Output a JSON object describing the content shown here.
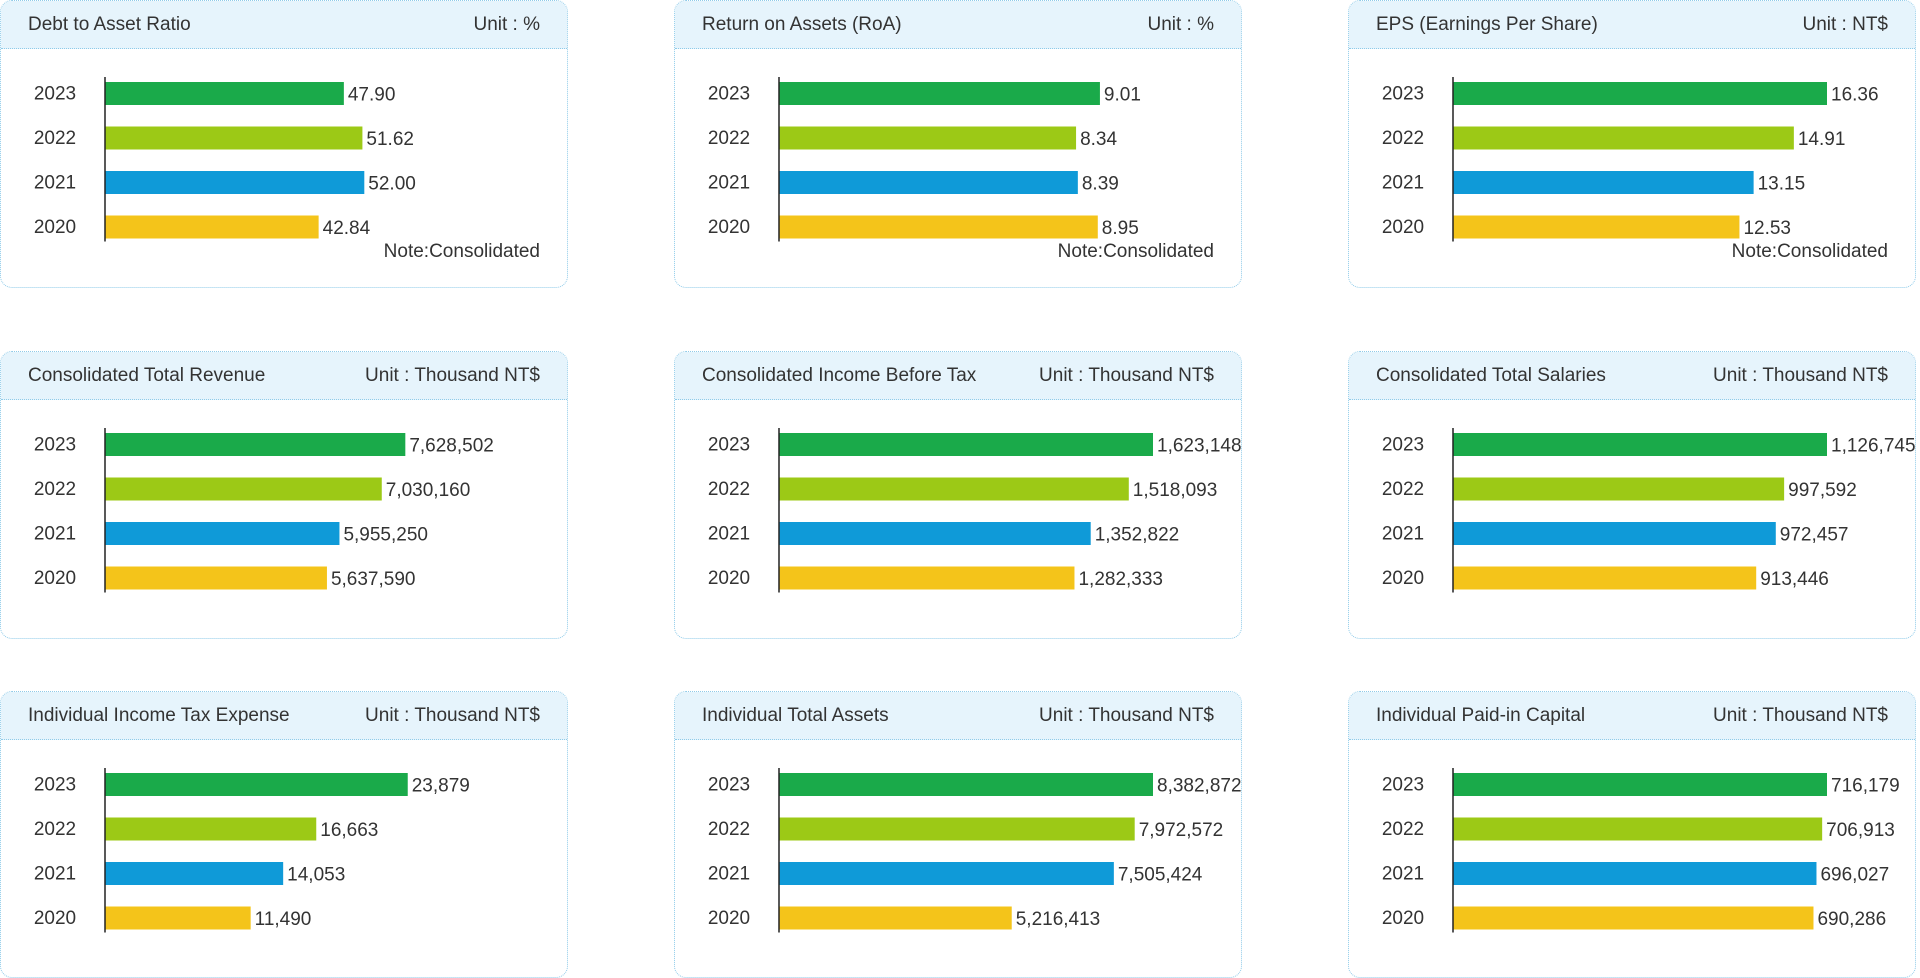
{
  "year_colors": {
    "2023": "#1aaa4a",
    "2022": "#9cc916",
    "2021": "#0f9ad8",
    "2020": "#f4c41a"
  },
  "charts": [
    {
      "title": "Debt to Asset Ratio",
      "unit": "Unit : %",
      "note": "Note:Consolidated",
      "chart_data": {
        "type": "bar",
        "orientation": "horizontal",
        "categories": [
          "2023",
          "2022",
          "2021",
          "2020"
        ],
        "values": [
          47.9,
          51.62,
          52.0,
          42.84
        ],
        "value_labels": [
          "47.90",
          "51.62",
          "52.00",
          "42.84"
        ],
        "xlim": [
          0,
          75
        ]
      }
    },
    {
      "title": "Return on Assets (RoA)",
      "unit": "Unit : %",
      "note": "Note:Consolidated",
      "chart_data": {
        "type": "bar",
        "orientation": "horizontal",
        "categories": [
          "2023",
          "2022",
          "2021",
          "2020"
        ],
        "values": [
          9.01,
          8.34,
          8.39,
          8.95
        ],
        "value_labels": [
          "9.01",
          "8.34",
          "8.39",
          "8.95"
        ],
        "xlim": [
          0,
          10.5
        ]
      }
    },
    {
      "title": "EPS (Earnings Per Share)",
      "unit": "Unit : NT$",
      "note": "Note:Consolidated",
      "chart_data": {
        "type": "bar",
        "orientation": "horizontal",
        "categories": [
          "2023",
          "2022",
          "2021",
          "2020"
        ],
        "values": [
          16.36,
          14.91,
          13.15,
          12.53
        ],
        "value_labels": [
          "16.36",
          "14.91",
          "13.15",
          "12.53"
        ],
        "xlim": [
          0,
          16.36
        ]
      }
    },
    {
      "title": "Consolidated Total Revenue",
      "unit": "Unit : Thousand NT$",
      "note": "",
      "chart_data": {
        "type": "bar",
        "orientation": "horizontal",
        "categories": [
          "2023",
          "2022",
          "2021",
          "2020"
        ],
        "values": [
          7628502,
          7030160,
          5955250,
          5637590
        ],
        "value_labels": [
          "7,628,502",
          "7,030,160",
          "5,955,250",
          "5,637,590"
        ],
        "xlim": [
          0,
          9500000
        ]
      }
    },
    {
      "title": "Consolidated Income Before Tax",
      "unit": "Unit : Thousand NT$",
      "note": "",
      "chart_data": {
        "type": "bar",
        "orientation": "horizontal",
        "categories": [
          "2023",
          "2022",
          "2021",
          "2020"
        ],
        "values": [
          1623148,
          1518093,
          1352822,
          1282333
        ],
        "value_labels": [
          "1,623,148",
          "1,518,093",
          "1,352,822",
          "1,282,333"
        ],
        "xlim": [
          0,
          1623148
        ]
      }
    },
    {
      "title": "Consolidated Total Salaries",
      "unit": "Unit : Thousand NT$",
      "note": "",
      "chart_data": {
        "type": "bar",
        "orientation": "horizontal",
        "categories": [
          "2023",
          "2022",
          "2021",
          "2020"
        ],
        "values": [
          1126745,
          997592,
          972457,
          913446
        ],
        "value_labels": [
          "1,126,745",
          "997,592",
          "972,457",
          "913,446"
        ],
        "xlim": [
          0,
          1126745
        ]
      }
    },
    {
      "title": "Individual Income Tax Expense",
      "unit": "Unit : Thousand NT$",
      "note": "",
      "chart_data": {
        "type": "bar",
        "orientation": "horizontal",
        "categories": [
          "2023",
          "2022",
          "2021",
          "2020"
        ],
        "values": [
          23879,
          16663,
          14053,
          11490
        ],
        "value_labels": [
          "23,879",
          "16,663",
          "14,053",
          "11,490"
        ],
        "xlim": [
          0,
          29500
        ]
      }
    },
    {
      "title": "Individual Total Assets",
      "unit": "Unit : Thousand NT$",
      "note": "",
      "chart_data": {
        "type": "bar",
        "orientation": "horizontal",
        "categories": [
          "2023",
          "2022",
          "2021",
          "2020"
        ],
        "values": [
          8382872,
          7972572,
          7505424,
          5216413
        ],
        "value_labels": [
          "8,382,872",
          "7,972,572",
          "7,505,424",
          "5,216,413"
        ],
        "xlim": [
          0,
          8382872
        ]
      }
    },
    {
      "title": "Individual Paid-in Capital",
      "unit": "Unit : Thousand NT$",
      "note": "",
      "chart_data": {
        "type": "bar",
        "orientation": "horizontal",
        "categories": [
          "2023",
          "2022",
          "2021",
          "2020"
        ],
        "values": [
          716179,
          706913,
          696027,
          690286
        ],
        "value_labels": [
          "716,179",
          "706,913",
          "696,027",
          "690,286"
        ],
        "xlim": [
          0,
          716179
        ]
      }
    }
  ]
}
